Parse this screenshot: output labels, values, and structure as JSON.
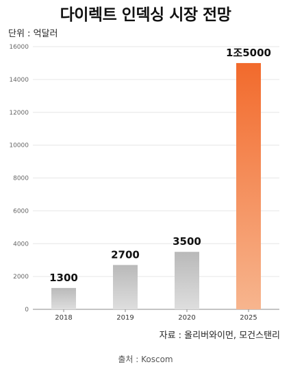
{
  "title": "다이렉트 인덱싱 시장 전망",
  "unit": "단위 : 억달러",
  "source": "자료 : 올리버와이먼, 모건스탠리",
  "credit": "출처 : Koscom",
  "chart_data": {
    "type": "bar",
    "title": "다이렉트 인덱싱 시장 전망",
    "categories": [
      "2018",
      "2019",
      "2020",
      "2025"
    ],
    "values": [
      1300,
      2700,
      3500,
      15000
    ],
    "data_labels": [
      "1300",
      "2700",
      "3500",
      "1조5000"
    ],
    "ylim": [
      0,
      16000
    ],
    "yticks": [
      0,
      2000,
      4000,
      6000,
      8000,
      10000,
      12000,
      14000,
      16000
    ],
    "grid": true,
    "colors": {
      "bar_top": "#b9b9b9",
      "bar_bottom": "#dedede",
      "highlight_top": "#f26a2c",
      "highlight_bottom": "#f7b58e",
      "grid": "#e6e6e6",
      "axis": "#888888"
    }
  }
}
